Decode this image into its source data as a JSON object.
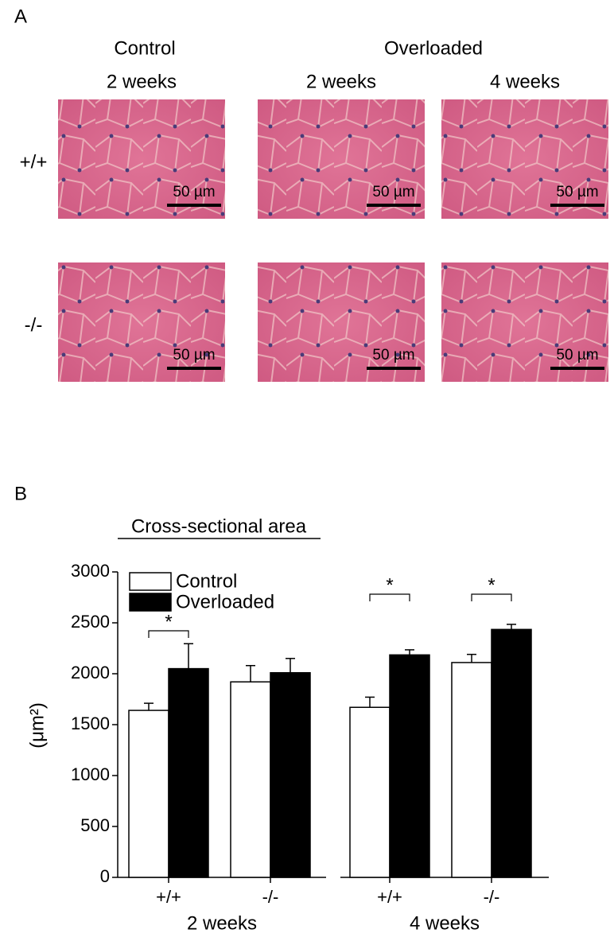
{
  "panel_a": {
    "label": "A",
    "control": "Control",
    "overloaded": "Overloaded",
    "columns": [
      "2 weeks",
      "2 weeks",
      "4 weeks"
    ],
    "rows": [
      "+/+",
      "-/-"
    ],
    "scale_bars": [
      [
        "50 µm",
        "50 µm",
        "50 µm"
      ],
      [
        "50 µm",
        "50 µm",
        "50 µm"
      ]
    ]
  },
  "panel_b_label": "B",
  "chart_data": {
    "type": "bar",
    "title": "Cross-sectional area",
    "y_label": "(μm²)",
    "categories": [
      "+/+",
      "-/-",
      "+/+",
      "-/-"
    ],
    "groups": [
      "2 weeks",
      "4 weeks"
    ],
    "series": [
      {
        "name": "Control",
        "color": "#ffffff",
        "values": [
          1640,
          1920,
          1670,
          2110
        ],
        "errors": [
          70,
          160,
          100,
          80
        ]
      },
      {
        "name": "Overloaded",
        "color": "#000000",
        "values": [
          2050,
          2010,
          2185,
          2435
        ],
        "errors": [
          245,
          140,
          50,
          50
        ]
      }
    ],
    "ylim": [
      0,
      3000
    ],
    "yticks": [
      0,
      500,
      1000,
      1500,
      2000,
      2500,
      3000
    ],
    "annotations": [
      "*",
      "*",
      "*"
    ]
  }
}
